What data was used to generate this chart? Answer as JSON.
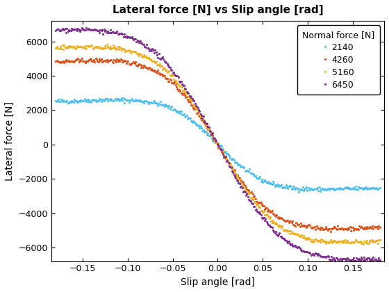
{
  "title": "Lateral force [N] vs Slip angle [rad]",
  "xlabel": "Slip angle [rad]",
  "ylabel": "Lateral force [N]",
  "legend_title": "Normal force [N]",
  "series": [
    {
      "label": "2140",
      "color": "#4DBEEE",
      "B": 14,
      "C": 1.45,
      "D": -2600,
      "E": -0.5
    },
    {
      "label": "4260",
      "color": "#D95319",
      "B": 12,
      "C": 1.45,
      "D": -4900,
      "E": -0.5
    },
    {
      "label": "5160",
      "color": "#EDB120",
      "B": 11,
      "C": 1.45,
      "D": -5700,
      "E": -0.5
    },
    {
      "label": "6450",
      "color": "#7E2F8E",
      "B": 10,
      "C": 1.45,
      "D": -6700,
      "E": -0.5
    }
  ],
  "xlim": [
    -0.185,
    0.185
  ],
  "ylim": [
    -6800,
    7200
  ],
  "yticks": [
    -6000,
    -4000,
    -2000,
    0,
    2000,
    4000,
    6000
  ],
  "xticks": [
    -0.15,
    -0.1,
    -0.05,
    0,
    0.05,
    0.1,
    0.15
  ],
  "noise_scale": 60,
  "num_points": 350,
  "markersize": 2.5,
  "background_color": "#FFFFFF",
  "grid": false
}
